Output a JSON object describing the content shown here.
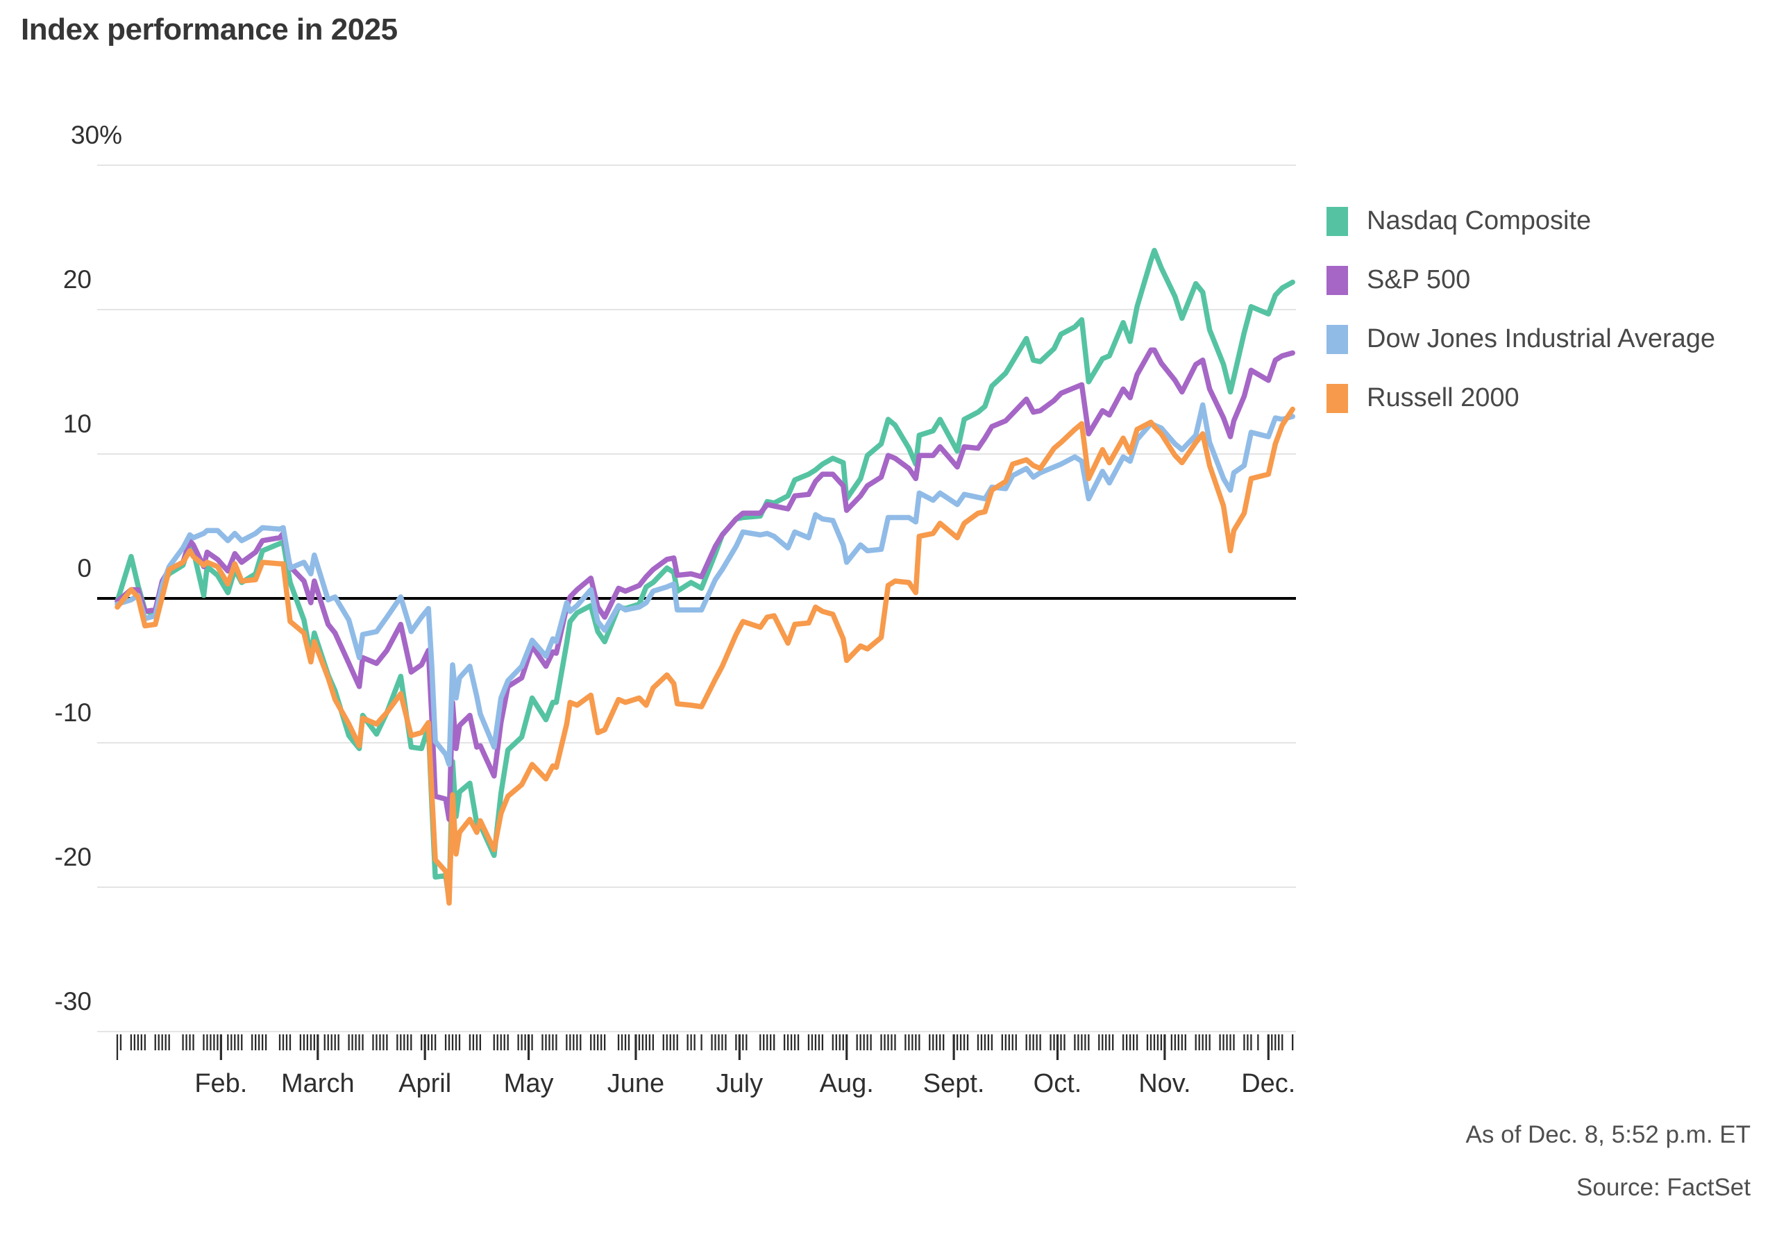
{
  "title": "Index performance in 2025",
  "footer": {
    "as_of": "As of Dec. 8, 5:52 p.m. ET",
    "source": "Source: FactSet"
  },
  "colors": {
    "nasdaq": "#55c3a2",
    "sp500": "#a566c6",
    "dow": "#90bbe7",
    "russell": "#f79a4b",
    "gridline": "#e4e4e4",
    "zero_line": "#000000",
    "tick": "#2b2b2b"
  },
  "chart_data": {
    "type": "line",
    "title": "Index performance in 2025",
    "ylabel": "",
    "xlabel": "",
    "ylim": [
      -30,
      30
    ],
    "grid": "horizontal",
    "legend_position": "right",
    "y_ticks": [
      {
        "value": 30,
        "label": "30%"
      },
      {
        "value": 20,
        "label": "20"
      },
      {
        "value": 10,
        "label": "10"
      },
      {
        "value": 0,
        "label": "0"
      },
      {
        "value": -10,
        "label": "-10"
      },
      {
        "value": -20,
        "label": "-20"
      },
      {
        "value": -30,
        "label": "-30"
      }
    ],
    "x_unit": "day of year 2025 (Jan 2 through Dec. 8)",
    "months": [
      {
        "label": "Feb.",
        "doy": 32
      },
      {
        "label": "March",
        "doy": 60
      },
      {
        "label": "April",
        "doy": 91
      },
      {
        "label": "May",
        "doy": 121
      },
      {
        "label": "June",
        "doy": 152
      },
      {
        "label": "July",
        "doy": 182
      },
      {
        "label": "Aug.",
        "doy": 213
      },
      {
        "label": "Sept.",
        "doy": 244
      },
      {
        "label": "Oct.",
        "doy": 274
      },
      {
        "label": "Nov.",
        "doy": 305
      },
      {
        "label": "Dec.",
        "doy": 335
      }
    ],
    "days": [
      2,
      6,
      8,
      10,
      13,
      15,
      17,
      21,
      23,
      24,
      27,
      28,
      31,
      34,
      36,
      38,
      42,
      44,
      49,
      50,
      52,
      56,
      58,
      59,
      63,
      65,
      69,
      72,
      73,
      77,
      80,
      84,
      87,
      90,
      92,
      93,
      94,
      97,
      98,
      99,
      100,
      101,
      104,
      106,
      107,
      111,
      113,
      115,
      119,
      122,
      126,
      128,
      129,
      132,
      133,
      135,
      139,
      141,
      143,
      147,
      149,
      153,
      155,
      157,
      161,
      163,
      164,
      168,
      171,
      175,
      177,
      181,
      183,
      188,
      190,
      192,
      196,
      198,
      202,
      204,
      206,
      209,
      212,
      213,
      217,
      219,
      223,
      225,
      227,
      231,
      233,
      234,
      238,
      240,
      245,
      247,
      251,
      253,
      255,
      259,
      261,
      265,
      267,
      269,
      273,
      275,
      279,
      281,
      283,
      287,
      289,
      293,
      295,
      297,
      301,
      302,
      304,
      308,
      310,
      314,
      316,
      318,
      322,
      324,
      325,
      328,
      330,
      335,
      337,
      339,
      342
    ],
    "series": [
      {
        "name": "Nasdaq Composite",
        "key": "nasdaq",
        "color": "#55c3a2",
        "values": [
          -0.2,
          2.9,
          0.9,
          -0.8,
          -1.2,
          1.0,
          1.7,
          2.3,
          3.8,
          3.3,
          0.2,
          2.2,
          1.6,
          0.4,
          2.0,
          1.1,
          1.7,
          3.3,
          3.8,
          3.9,
          1.1,
          -1.5,
          -4.0,
          -2.4,
          -5.3,
          -6.4,
          -9.5,
          -10.4,
          -8.1,
          -9.4,
          -7.9,
          -5.4,
          -10.3,
          -10.4,
          -8.9,
          -14.3,
          -19.3,
          -19.2,
          -20.9,
          -11.3,
          -15.1,
          -13.4,
          -12.8,
          -15.6,
          -15.7,
          -17.8,
          -13.5,
          -10.5,
          -9.6,
          -6.9,
          -8.4,
          -7.2,
          -7.2,
          -3.1,
          -1.6,
          -1.0,
          -0.5,
          -2.3,
          -3.0,
          -0.6,
          -0.7,
          -0.4,
          0.8,
          1.1,
          2.1,
          1.8,
          0.5,
          1.1,
          0.7,
          3.1,
          4.4,
          5.5,
          5.6,
          5.7,
          6.7,
          6.6,
          7.1,
          8.2,
          8.6,
          8.9,
          9.3,
          9.7,
          9.4,
          6.9,
          8.3,
          9.9,
          10.7,
          12.4,
          12.0,
          10.4,
          9.3,
          11.3,
          11.6,
          12.4,
          10.2,
          12.4,
          12.9,
          13.3,
          14.7,
          15.6,
          16.4,
          18.0,
          16.5,
          16.4,
          17.3,
          18.3,
          18.8,
          19.3,
          15.0,
          16.6,
          16.8,
          19.1,
          17.8,
          20.2,
          23.4,
          24.1,
          22.9,
          20.9,
          19.4,
          21.8,
          21.2,
          18.6,
          16.2,
          14.3,
          15.3,
          18.4,
          20.2,
          19.7,
          21.0,
          21.5,
          21.9
        ]
      },
      {
        "name": "S&P 500",
        "key": "sp500",
        "color": "#a566c6",
        "values": [
          -0.2,
          0.6,
          0.6,
          -0.9,
          -0.8,
          1.2,
          2.0,
          2.5,
          4.0,
          3.7,
          2.2,
          3.2,
          2.7,
          1.9,
          3.1,
          2.5,
          3.2,
          4.0,
          4.2,
          4.5,
          2.2,
          1.2,
          -0.3,
          1.2,
          -1.8,
          -2.4,
          -4.5,
          -6.1,
          -4.1,
          -4.5,
          -3.6,
          -1.8,
          -5.1,
          -4.6,
          -3.6,
          -8.3,
          -13.7,
          -13.9,
          -15.3,
          -7.2,
          -10.4,
          -8.8,
          -8.1,
          -10.3,
          -10.2,
          -12.3,
          -8.6,
          -6.1,
          -5.5,
          -3.3,
          -4.7,
          -3.7,
          -3.8,
          -0.6,
          0.1,
          0.6,
          1.4,
          -0.6,
          -1.3,
          0.7,
          0.5,
          0.9,
          1.5,
          2.0,
          2.7,
          2.8,
          1.6,
          1.7,
          1.5,
          3.6,
          4.4,
          5.5,
          5.9,
          5.9,
          6.5,
          6.4,
          6.2,
          7.1,
          7.2,
          8.1,
          8.6,
          8.6,
          7.8,
          6.1,
          7.1,
          7.8,
          8.4,
          9.9,
          9.7,
          9.0,
          8.3,
          9.9,
          9.9,
          10.5,
          9.1,
          10.5,
          10.4,
          11.1,
          11.9,
          12.3,
          12.8,
          13.8,
          12.9,
          13.0,
          13.7,
          14.2,
          14.6,
          14.8,
          11.4,
          13.0,
          12.7,
          14.5,
          13.9,
          15.5,
          17.2,
          17.2,
          16.3,
          15.1,
          14.3,
          16.2,
          16.5,
          14.5,
          12.5,
          11.2,
          12.3,
          14.0,
          15.8,
          15.1,
          16.5,
          16.8,
          17.0
        ]
      },
      {
        "name": "Dow Jones Industrial Average",
        "key": "dow",
        "color": "#90bbe7",
        "values": [
          -0.4,
          -0.1,
          0.2,
          -1.4,
          -1.2,
          0.9,
          2.2,
          3.5,
          4.4,
          4.2,
          4.5,
          4.7,
          4.7,
          4.0,
          4.5,
          4.0,
          4.5,
          4.9,
          4.8,
          4.9,
          2.1,
          2.5,
          1.7,
          3.0,
          -0.1,
          0.1,
          -1.5,
          -4.1,
          -2.5,
          -2.3,
          -1.3,
          0.1,
          -2.3,
          -1.3,
          -0.7,
          -4.7,
          -9.9,
          -10.8,
          -11.5,
          -4.6,
          -6.9,
          -5.5,
          -4.7,
          -6.8,
          -8.0,
          -10.3,
          -6.9,
          -5.7,
          -4.7,
          -2.9,
          -4.0,
          -2.8,
          -3.0,
          -0.3,
          -0.9,
          -0.5,
          0.6,
          -1.6,
          -2.2,
          -0.5,
          -0.8,
          -0.6,
          -0.3,
          0.5,
          0.8,
          1.0,
          -0.8,
          -0.8,
          -0.8,
          1.3,
          2.0,
          3.6,
          4.6,
          4.4,
          4.5,
          4.3,
          3.5,
          4.6,
          4.2,
          5.8,
          5.5,
          5.4,
          3.7,
          2.5,
          3.7,
          3.3,
          3.4,
          5.6,
          5.6,
          5.6,
          5.3,
          7.3,
          6.8,
          7.3,
          6.5,
          7.2,
          7.0,
          6.9,
          7.7,
          7.6,
          8.5,
          9.0,
          8.4,
          8.7,
          9.1,
          9.3,
          9.8,
          9.5,
          6.9,
          8.8,
          8.0,
          9.8,
          9.5,
          11.0,
          12.1,
          12.0,
          11.8,
          10.7,
          10.3,
          11.3,
          13.4,
          10.8,
          8.3,
          7.5,
          8.7,
          9.2,
          11.5,
          11.2,
          12.5,
          12.4,
          12.6
        ]
      },
      {
        "name": "Russell 2000",
        "key": "russell",
        "color": "#f79a4b",
        "values": [
          -0.6,
          0.6,
          0.1,
          -1.9,
          -1.8,
          0.1,
          2.0,
          2.5,
          3.3,
          2.9,
          2.3,
          2.5,
          2.2,
          1.0,
          2.4,
          1.2,
          1.3,
          2.5,
          2.4,
          2.4,
          -1.6,
          -2.4,
          -4.4,
          -3.0,
          -5.5,
          -7.0,
          -8.7,
          -10.2,
          -8.3,
          -8.7,
          -7.9,
          -6.6,
          -9.5,
          -9.3,
          -8.6,
          -13.5,
          -18.1,
          -18.9,
          -21.1,
          -13.6,
          -17.7,
          -16.2,
          -15.3,
          -16.2,
          -15.4,
          -17.4,
          -14.9,
          -13.7,
          -12.9,
          -11.5,
          -12.5,
          -11.6,
          -11.7,
          -8.7,
          -7.2,
          -7.4,
          -6.7,
          -9.3,
          -9.1,
          -7.0,
          -7.2,
          -6.9,
          -7.4,
          -6.2,
          -5.3,
          -5.9,
          -7.3,
          -7.4,
          -7.5,
          -5.6,
          -4.7,
          -2.5,
          -1.6,
          -2.0,
          -1.3,
          -1.2,
          -3.1,
          -1.8,
          -1.7,
          -0.6,
          -0.9,
          -1.1,
          -2.8,
          -4.3,
          -3.3,
          -3.5,
          -2.7,
          0.9,
          1.2,
          1.1,
          0.4,
          4.3,
          4.5,
          5.2,
          4.2,
          5.2,
          5.9,
          6.0,
          7.5,
          8.1,
          9.3,
          9.6,
          9.2,
          9.0,
          10.4,
          10.8,
          11.7,
          12.1,
          8.3,
          10.3,
          9.4,
          11.1,
          10.1,
          11.7,
          12.2,
          11.9,
          11.4,
          9.9,
          9.4,
          10.8,
          11.4,
          9.2,
          6.4,
          3.3,
          4.7,
          5.9,
          8.3,
          8.6,
          10.7,
          12.0,
          13.1
        ]
      }
    ],
    "annotations": [
      "As of Dec. 8, 5:52 p.m. ET",
      "Source: FactSet"
    ]
  }
}
